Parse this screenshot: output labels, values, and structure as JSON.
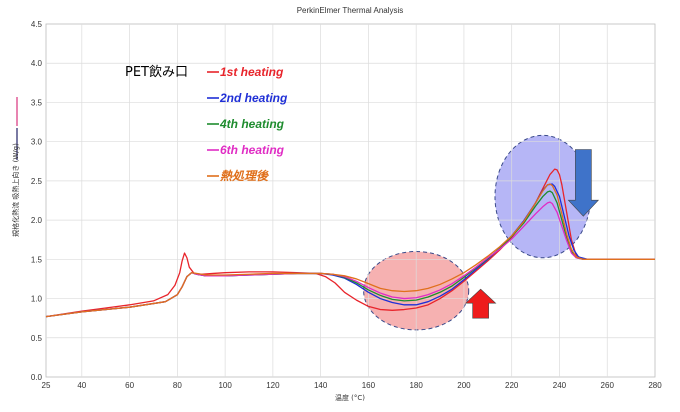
{
  "chart_data": {
    "type": "line",
    "title": "PerkinElmer Thermal Analysis",
    "xlabel": "温度 (°C)",
    "ylabel": "規格化熱流 吸熱上向き (W/g)",
    "xlim": [
      25,
      280
    ],
    "ylim": [
      0,
      4.5
    ],
    "x_ticks": [
      "25",
      "40",
      "60",
      "80",
      "100",
      "120",
      "140",
      "160",
      "180",
      "200",
      "220",
      "240",
      "260",
      "280"
    ],
    "y_ticks": [
      "0.0",
      "0.5",
      "1.0",
      "1.5",
      "2.0",
      "2.5",
      "3.0",
      "3.5",
      "4.0",
      "4.5"
    ],
    "grid": true,
    "sample_label": "PET飲み口",
    "legend_position": "top-left",
    "series": [
      {
        "name": "1st heating",
        "color": "#e8242b",
        "x": [
          25,
          40,
          50,
          60,
          70,
          76,
          79,
          81,
          82,
          83,
          84,
          85,
          87,
          90,
          95,
          100,
          110,
          120,
          130,
          138,
          142,
          146,
          150,
          155,
          160,
          165,
          170,
          175,
          180,
          185,
          190,
          195,
          200,
          205,
          210,
          215,
          220,
          225,
          230,
          233,
          236,
          238,
          239,
          240,
          241,
          243,
          245,
          247,
          250,
          255,
          260,
          270,
          280
        ],
        "y": [
          0.77,
          0.84,
          0.88,
          0.92,
          0.97,
          1.05,
          1.17,
          1.33,
          1.48,
          1.58,
          1.52,
          1.4,
          1.32,
          1.31,
          1.32,
          1.33,
          1.34,
          1.34,
          1.33,
          1.32,
          1.28,
          1.2,
          1.08,
          0.98,
          0.9,
          0.86,
          0.85,
          0.86,
          0.88,
          0.92,
          1.0,
          1.1,
          1.22,
          1.35,
          1.48,
          1.62,
          1.78,
          1.98,
          2.22,
          2.4,
          2.58,
          2.65,
          2.64,
          2.58,
          2.45,
          2.1,
          1.75,
          1.55,
          1.5,
          1.5,
          1.5,
          1.5,
          1.5
        ]
      },
      {
        "name": "2nd heating",
        "color": "#1f2fd6",
        "x": [
          25,
          40,
          60,
          75,
          80,
          82,
          84,
          86,
          88,
          92,
          100,
          110,
          120,
          130,
          140,
          145,
          150,
          155,
          160,
          165,
          170,
          175,
          180,
          185,
          190,
          195,
          200,
          205,
          210,
          215,
          220,
          225,
          230,
          233,
          235,
          237,
          238,
          240,
          242,
          244,
          246,
          248,
          252,
          260,
          270,
          280
        ],
        "y": [
          0.77,
          0.83,
          0.89,
          0.96,
          1.05,
          1.15,
          1.28,
          1.33,
          1.31,
          1.29,
          1.29,
          1.3,
          1.31,
          1.32,
          1.32,
          1.3,
          1.26,
          1.18,
          1.08,
          1.0,
          0.95,
          0.92,
          0.92,
          0.96,
          1.03,
          1.12,
          1.24,
          1.37,
          1.5,
          1.64,
          1.8,
          1.99,
          2.22,
          2.38,
          2.45,
          2.46,
          2.43,
          2.3,
          2.05,
          1.8,
          1.62,
          1.53,
          1.5,
          1.5,
          1.5,
          1.5
        ]
      },
      {
        "name": "4th heating",
        "color": "#1e8c2e",
        "x": [
          25,
          40,
          60,
          75,
          80,
          82,
          84,
          86,
          88,
          92,
          100,
          110,
          120,
          130,
          140,
          145,
          150,
          155,
          160,
          165,
          170,
          175,
          180,
          185,
          190,
          195,
          200,
          205,
          210,
          215,
          220,
          225,
          230,
          233,
          235,
          236,
          237,
          239,
          241,
          243,
          245,
          247,
          250,
          260,
          270,
          280
        ],
        "y": [
          0.77,
          0.83,
          0.89,
          0.96,
          1.05,
          1.15,
          1.28,
          1.33,
          1.31,
          1.29,
          1.29,
          1.3,
          1.31,
          1.32,
          1.32,
          1.31,
          1.27,
          1.2,
          1.11,
          1.04,
          0.99,
          0.97,
          0.98,
          1.02,
          1.08,
          1.16,
          1.27,
          1.39,
          1.51,
          1.64,
          1.79,
          1.96,
          2.18,
          2.3,
          2.36,
          2.37,
          2.35,
          2.22,
          2.0,
          1.78,
          1.6,
          1.52,
          1.5,
          1.5,
          1.5,
          1.5
        ]
      },
      {
        "name": "6th heating",
        "color": "#e02cc4",
        "x": [
          25,
          40,
          60,
          75,
          80,
          82,
          84,
          86,
          88,
          92,
          100,
          110,
          120,
          130,
          140,
          145,
          150,
          155,
          160,
          165,
          170,
          175,
          180,
          185,
          190,
          195,
          200,
          205,
          210,
          215,
          220,
          225,
          230,
          233,
          235,
          236,
          237,
          239,
          241,
          243,
          245,
          247,
          250,
          260,
          270,
          280
        ],
        "y": [
          0.77,
          0.83,
          0.89,
          0.96,
          1.05,
          1.15,
          1.28,
          1.33,
          1.31,
          1.29,
          1.29,
          1.3,
          1.31,
          1.32,
          1.32,
          1.31,
          1.28,
          1.22,
          1.14,
          1.07,
          1.02,
          1.0,
          1.01,
          1.05,
          1.11,
          1.19,
          1.29,
          1.4,
          1.52,
          1.63,
          1.76,
          1.92,
          2.08,
          2.17,
          2.22,
          2.23,
          2.21,
          2.1,
          1.92,
          1.74,
          1.58,
          1.52,
          1.5,
          1.5,
          1.5,
          1.5
        ]
      },
      {
        "name": "熱処理後",
        "color": "#e0701c",
        "x": [
          25,
          40,
          60,
          75,
          80,
          82,
          84,
          86,
          88,
          92,
          100,
          110,
          120,
          130,
          140,
          145,
          150,
          155,
          160,
          165,
          170,
          175,
          180,
          185,
          190,
          195,
          200,
          205,
          210,
          215,
          220,
          225,
          230,
          233,
          235,
          236,
          237,
          239,
          241,
          243,
          245,
          247,
          250,
          260,
          270,
          280
        ],
        "y": [
          0.77,
          0.83,
          0.89,
          0.96,
          1.05,
          1.15,
          1.28,
          1.33,
          1.32,
          1.3,
          1.3,
          1.31,
          1.32,
          1.32,
          1.32,
          1.31,
          1.29,
          1.25,
          1.19,
          1.13,
          1.1,
          1.09,
          1.1,
          1.13,
          1.18,
          1.25,
          1.33,
          1.43,
          1.54,
          1.66,
          1.8,
          1.98,
          2.22,
          2.37,
          2.45,
          2.46,
          2.44,
          2.32,
          2.08,
          1.82,
          1.63,
          1.53,
          1.5,
          1.5,
          1.5,
          1.5
        ]
      }
    ],
    "annotations": [
      {
        "kind": "ellipse",
        "cx": 180,
        "cy": 1.1,
        "rx_data": 22,
        "ry_data": 0.5,
        "fill": "#f4a3a3"
      },
      {
        "kind": "ellipse",
        "cx": 233,
        "cy": 2.3,
        "rx_data": 20,
        "ry_data": 0.78,
        "fill": "#a9a9f5"
      },
      {
        "kind": "arrow",
        "direction": "up",
        "x": 207,
        "y_from": 0.75,
        "y_to": 1.12,
        "color": "#ee1c1c"
      },
      {
        "kind": "arrow",
        "direction": "down",
        "x": 250,
        "y_from": 2.9,
        "y_to": 2.05,
        "color": "#3f73c9"
      }
    ]
  }
}
